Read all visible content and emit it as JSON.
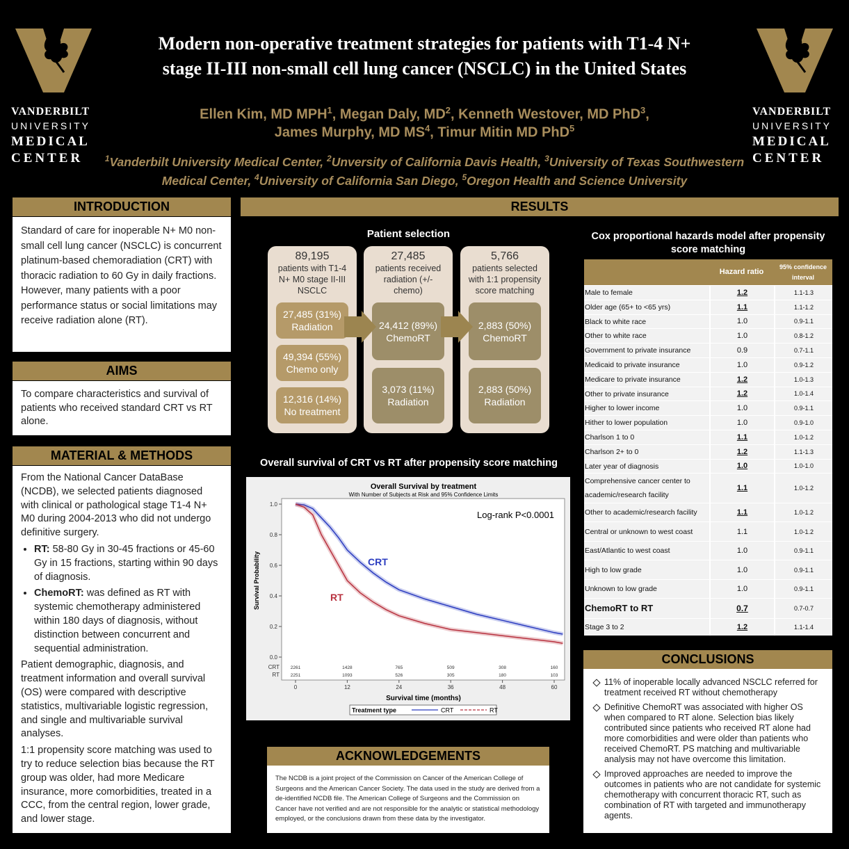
{
  "header": {
    "title_lines": [
      "Modern non-operative treatment strategies for patients with T1-4 N+",
      "stage II-III non-small cell lung cancer (NSCLC) in the United States"
    ],
    "author_lines": [
      [
        {
          "name": "Ellen Kim, MD MPH",
          "sup": "1",
          "after": ", "
        },
        {
          "name": "Megan Daly, MD",
          "sup": "2",
          "after": ", "
        },
        {
          "name": "Kenneth Westover, MD PhD",
          "sup": "3",
          "after": ","
        }
      ],
      [
        {
          "name": "James Murphy, MD MS",
          "sup": "4",
          "after": ", "
        },
        {
          "name": "Timur Mitin MD PhD",
          "sup": "5"
        }
      ]
    ],
    "affiliations": [
      {
        "sup": "1",
        "name": "Vanderbilt University Medical Center",
        "after": ", "
      },
      {
        "sup": "2",
        "name": "Unversity of California Davis Health",
        "after": ", "
      },
      {
        "sup": "3",
        "name": "University of Texas Southwestern Medical Center",
        "after": ", "
      },
      {
        "sup": "4",
        "name": "University of California San Diego",
        "after": ", "
      },
      {
        "sup": "5",
        "name": "Oregon Health and Science University"
      }
    ],
    "logo_text": [
      "VANDERBILT",
      "UNIVERSITY",
      "MEDICAL",
      "CENTER"
    ]
  },
  "introduction": {
    "heading": "INTRODUCTION",
    "text": "Standard of care for inoperable N+ M0 non-small cell lung cancer (NSCLC) is concurrent platinum-based chemoradiation (CRT) with thoracic radiation to 60 Gy in daily fractions. However, many patients with a poor performance status or social limitations may receive radiation alone (RT)."
  },
  "aims": {
    "heading": "AIMS",
    "text": "To compare characteristics and survival of patients who received standard CRT vs RT alone."
  },
  "methods": {
    "heading": "MATERIAL & METHODS",
    "intro": "From the National Cancer DataBase (NCDB), we selected patients diagnosed with clinical or pathological stage T1-4 N+ M0 during 2004-2013 who did not undergo definitive surgery.",
    "bullets": [
      {
        "lead": "RT:",
        "text": " 58-80 Gy in 30-45 fractions or 45-60 Gy in 15 fractions, starting within 90 days of diagnosis."
      },
      {
        "lead": "ChemoRT:",
        "text": " was defined as RT with systemic chemotherapy administered within 180 days of diagnosis, without distinction between concurrent and sequential administration."
      }
    ],
    "paragraphs": [
      "Patient demographic, diagnosis, and treatment information and overall survival (OS) were compared with descriptive statistics, multivariable logistic regression, and single and multivariable survival analyses.",
      "1:1 propensity score matching was used to try to reduce selection bias because the RT group was older, had more Medicare insurance, more comorbidities, treated in a CCC, from the central region, lower grade, and lower stage."
    ]
  },
  "results": {
    "heading": "RESULTS",
    "selection_title": "Patient selection",
    "selection": [
      {
        "count": "89,195",
        "text": "patients with T1-4 N+ M0 stage II-III NSCLC",
        "boxes": [
          {
            "count": "27,485 (31%)",
            "label": "Radiation"
          },
          {
            "count": "49,394 (55%)",
            "label": "Chemo only"
          },
          {
            "count": "12,316 (14%)",
            "label": "No treatment"
          }
        ]
      },
      {
        "count": "27,485",
        "text": "patients received radiation (+/- chemo)",
        "boxes": [
          {
            "count": "24,412 (89%)",
            "label": "ChemoRT"
          },
          {
            "count": "3,073 (11%)",
            "label": "Radiation"
          }
        ]
      },
      {
        "count": "5,766",
        "text": "patients selected with 1:1 propensity score matching",
        "boxes": [
          {
            "count": "2,883 (50%)",
            "label": "ChemoRT"
          },
          {
            "count": "2,883 (50%)",
            "label": "Radiation"
          }
        ]
      }
    ],
    "survival_title": "Overall survival of CRT vs RT after propensity score matching",
    "cox_title": "Cox proportional hazards model after propensity score matching",
    "cox_columns": [
      "Hazard ratio",
      "95% confidence interval"
    ],
    "cox_rows": [
      {
        "label": "Male to female",
        "hr": "1.2",
        "ci": "1.1-1.3",
        "significant": true
      },
      {
        "label": "Older age (65+ to <65 yrs)",
        "hr": "1.1",
        "ci": "1.1-1.2",
        "significant": true
      },
      {
        "label": "Black to white race",
        "hr": "1.0",
        "ci": "0.9-1.1"
      },
      {
        "label": "Other to white race",
        "hr": "1.0",
        "ci": "0.8-1.2"
      },
      {
        "label": "Government to private insurance",
        "hr": "0.9",
        "ci": "0.7-1.1"
      },
      {
        "label": "Medicaid to private insurance",
        "hr": "1.0",
        "ci": "0.9-1.2"
      },
      {
        "label": "Medicare to private insurance",
        "hr": "1.2",
        "ci": "1.0-1.3",
        "significant": true
      },
      {
        "label": "Other to private insurance",
        "hr": "1.2",
        "ci": "1.0-1.4",
        "significant": true
      },
      {
        "label": "Higher to lower income",
        "hr": "1.0",
        "ci": "0.9-1.1"
      },
      {
        "label": "Hither to lower population",
        "hr": "1.0",
        "ci": "0.9-1.0"
      },
      {
        "label": "Charlson 1 to 0",
        "hr": "1.1",
        "ci": "1.0-1.2",
        "significant": true
      },
      {
        "label": "Charlson 2+ to 0",
        "hr": "1.2",
        "ci": "1.1-1.3",
        "significant": true
      },
      {
        "label": "Later year of diagnosis",
        "hr": "1.0",
        "ci": "1.0-1.0",
        "significant": true
      },
      {
        "label": "Comprehensive cancer center to academic/research facility",
        "hr": "1.1",
        "ci": "1.0-1.2",
        "significant": true
      },
      {
        "label": "Other to academic/research facility",
        "hr": "1.1",
        "ci": "1.0-1.2",
        "significant": true
      },
      {
        "label": "Central or unknown to west coast",
        "hr": "1.1",
        "ci": "1.0-1.2"
      },
      {
        "label": "East/Atlantic to west coast",
        "hr": "1.0",
        "ci": "0.9-1.1"
      },
      {
        "label": "High to low grade",
        "hr": "1.0",
        "ci": "0.9-1.1"
      },
      {
        "label": "Unknown to low grade",
        "hr": "1.0",
        "ci": "0.9-1.1"
      },
      {
        "label": "ChemoRT to RT",
        "hr": "0.7",
        "ci": "0.7-0.7",
        "significant": true,
        "highlight": true
      },
      {
        "label": "Stage 3 to 2",
        "hr": "1.2",
        "ci": "1.1-1.4",
        "significant": true
      }
    ]
  },
  "acknowledgements": {
    "heading": "ACKNOWLEDGEMENTS",
    "text": "The NCDB is a joint project of the Commission on Cancer of the American College of Surgeons and the American Cancer Society. The data used in the study are derived from a de-identified NCDB file. The American College of Surgeons and the Commission on Cancer have not verified and are not responsible for the analytic or statistical methodology employed, or the conclusions drawn from these data by the investigator."
  },
  "conclusions": {
    "heading": "CONCLUSIONS",
    "bullets": [
      "11% of inoperable locally advanced NSCLC referred for treatment received RT without chemotherapy",
      "Definitive ChemoRT was associated with higher OS when compared to RT alone. Selection bias likely contributed since patients who received RT alone had more comorbidities and were older than patients who received ChemoRT. PS matching and multivariable analysis may not have overcome this limitation.",
      "Improved approaches are needed to improve the outcomes in patients who are not candidate for systemic chemotherapy with concurrent thoracic RT, such as combination of RT with targeted and immunotherapy agents."
    ]
  },
  "chart_data": {
    "type": "line",
    "title": "Overall Survival by treatment",
    "subtitle": "With Number of Subjects at Risk and 95% Confidence Limits",
    "x_label": "Survival time (months)",
    "y_label": "Survival Probability",
    "annotation": "Log-rank P<0.0001",
    "legend_title": "Treatment type",
    "x": [
      0,
      2,
      4,
      6,
      8,
      10,
      12,
      15,
      18,
      21,
      24,
      30,
      36,
      42,
      48,
      54,
      60,
      62
    ],
    "series": [
      {
        "name": "CRT",
        "color": "#2b3cc0",
        "values": [
          1.0,
          0.995,
          0.97,
          0.91,
          0.85,
          0.78,
          0.7,
          0.62,
          0.55,
          0.49,
          0.44,
          0.38,
          0.33,
          0.28,
          0.24,
          0.2,
          0.16,
          0.15
        ],
        "at_risk": [
          2261,
          1428,
          765,
          509,
          308,
          160
        ]
      },
      {
        "name": "RT",
        "color": "#b8323f",
        "values": [
          1.0,
          0.98,
          0.93,
          0.8,
          0.7,
          0.6,
          0.5,
          0.42,
          0.36,
          0.31,
          0.27,
          0.22,
          0.18,
          0.16,
          0.14,
          0.12,
          0.1,
          0.09
        ],
        "at_risk": [
          2251,
          1093,
          526,
          305,
          180,
          103
        ]
      }
    ],
    "at_risk_x": [
      0,
      12,
      24,
      36,
      48,
      60
    ],
    "xlim": [
      0,
      62
    ],
    "ylim": [
      0,
      1
    ],
    "xticks": [
      0,
      12,
      24,
      36,
      48,
      60
    ],
    "yticks": [
      {
        "value": 0,
        "label": "0.0"
      },
      0.2,
      0.4,
      0.6,
      0.8,
      {
        "value": 1,
        "label": "1.0"
      }
    ]
  }
}
